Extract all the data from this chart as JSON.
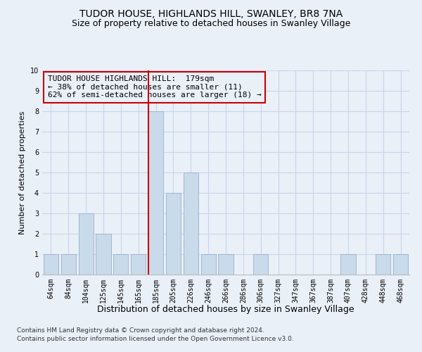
{
  "title": "TUDOR HOUSE, HIGHLANDS HILL, SWANLEY, BR8 7NA",
  "subtitle": "Size of property relative to detached houses in Swanley Village",
  "xlabel": "Distribution of detached houses by size in Swanley Village",
  "ylabel": "Number of detached properties",
  "bar_labels": [
    "64sqm",
    "84sqm",
    "104sqm",
    "125sqm",
    "145sqm",
    "165sqm",
    "185sqm",
    "205sqm",
    "226sqm",
    "246sqm",
    "266sqm",
    "286sqm",
    "306sqm",
    "327sqm",
    "347sqm",
    "367sqm",
    "387sqm",
    "407sqm",
    "428sqm",
    "448sqm",
    "468sqm"
  ],
  "bar_values": [
    1,
    1,
    3,
    2,
    1,
    1,
    8,
    4,
    5,
    1,
    1,
    0,
    1,
    0,
    0,
    0,
    0,
    1,
    0,
    1,
    1
  ],
  "bar_color": "#c9daea",
  "bar_edgecolor": "#a0b8d0",
  "vline_index": 6,
  "vline_color": "#cc0000",
  "annotation_text": "TUDOR HOUSE HIGHLANDS HILL:  179sqm\n← 38% of detached houses are smaller (11)\n62% of semi-detached houses are larger (18) →",
  "annotation_box_edgecolor": "#cc0000",
  "ylim": [
    0,
    10
  ],
  "yticks": [
    0,
    1,
    2,
    3,
    4,
    5,
    6,
    7,
    8,
    9,
    10
  ],
  "grid_color": "#c8d4e8",
  "background_color": "#eaf0f8",
  "footer_line1": "Contains HM Land Registry data © Crown copyright and database right 2024.",
  "footer_line2": "Contains public sector information licensed under the Open Government Licence v3.0.",
  "title_fontsize": 10,
  "subtitle_fontsize": 9,
  "ylabel_fontsize": 8,
  "xlabel_fontsize": 9,
  "tick_fontsize": 7,
  "annotation_fontsize": 8,
  "footer_fontsize": 6.5
}
